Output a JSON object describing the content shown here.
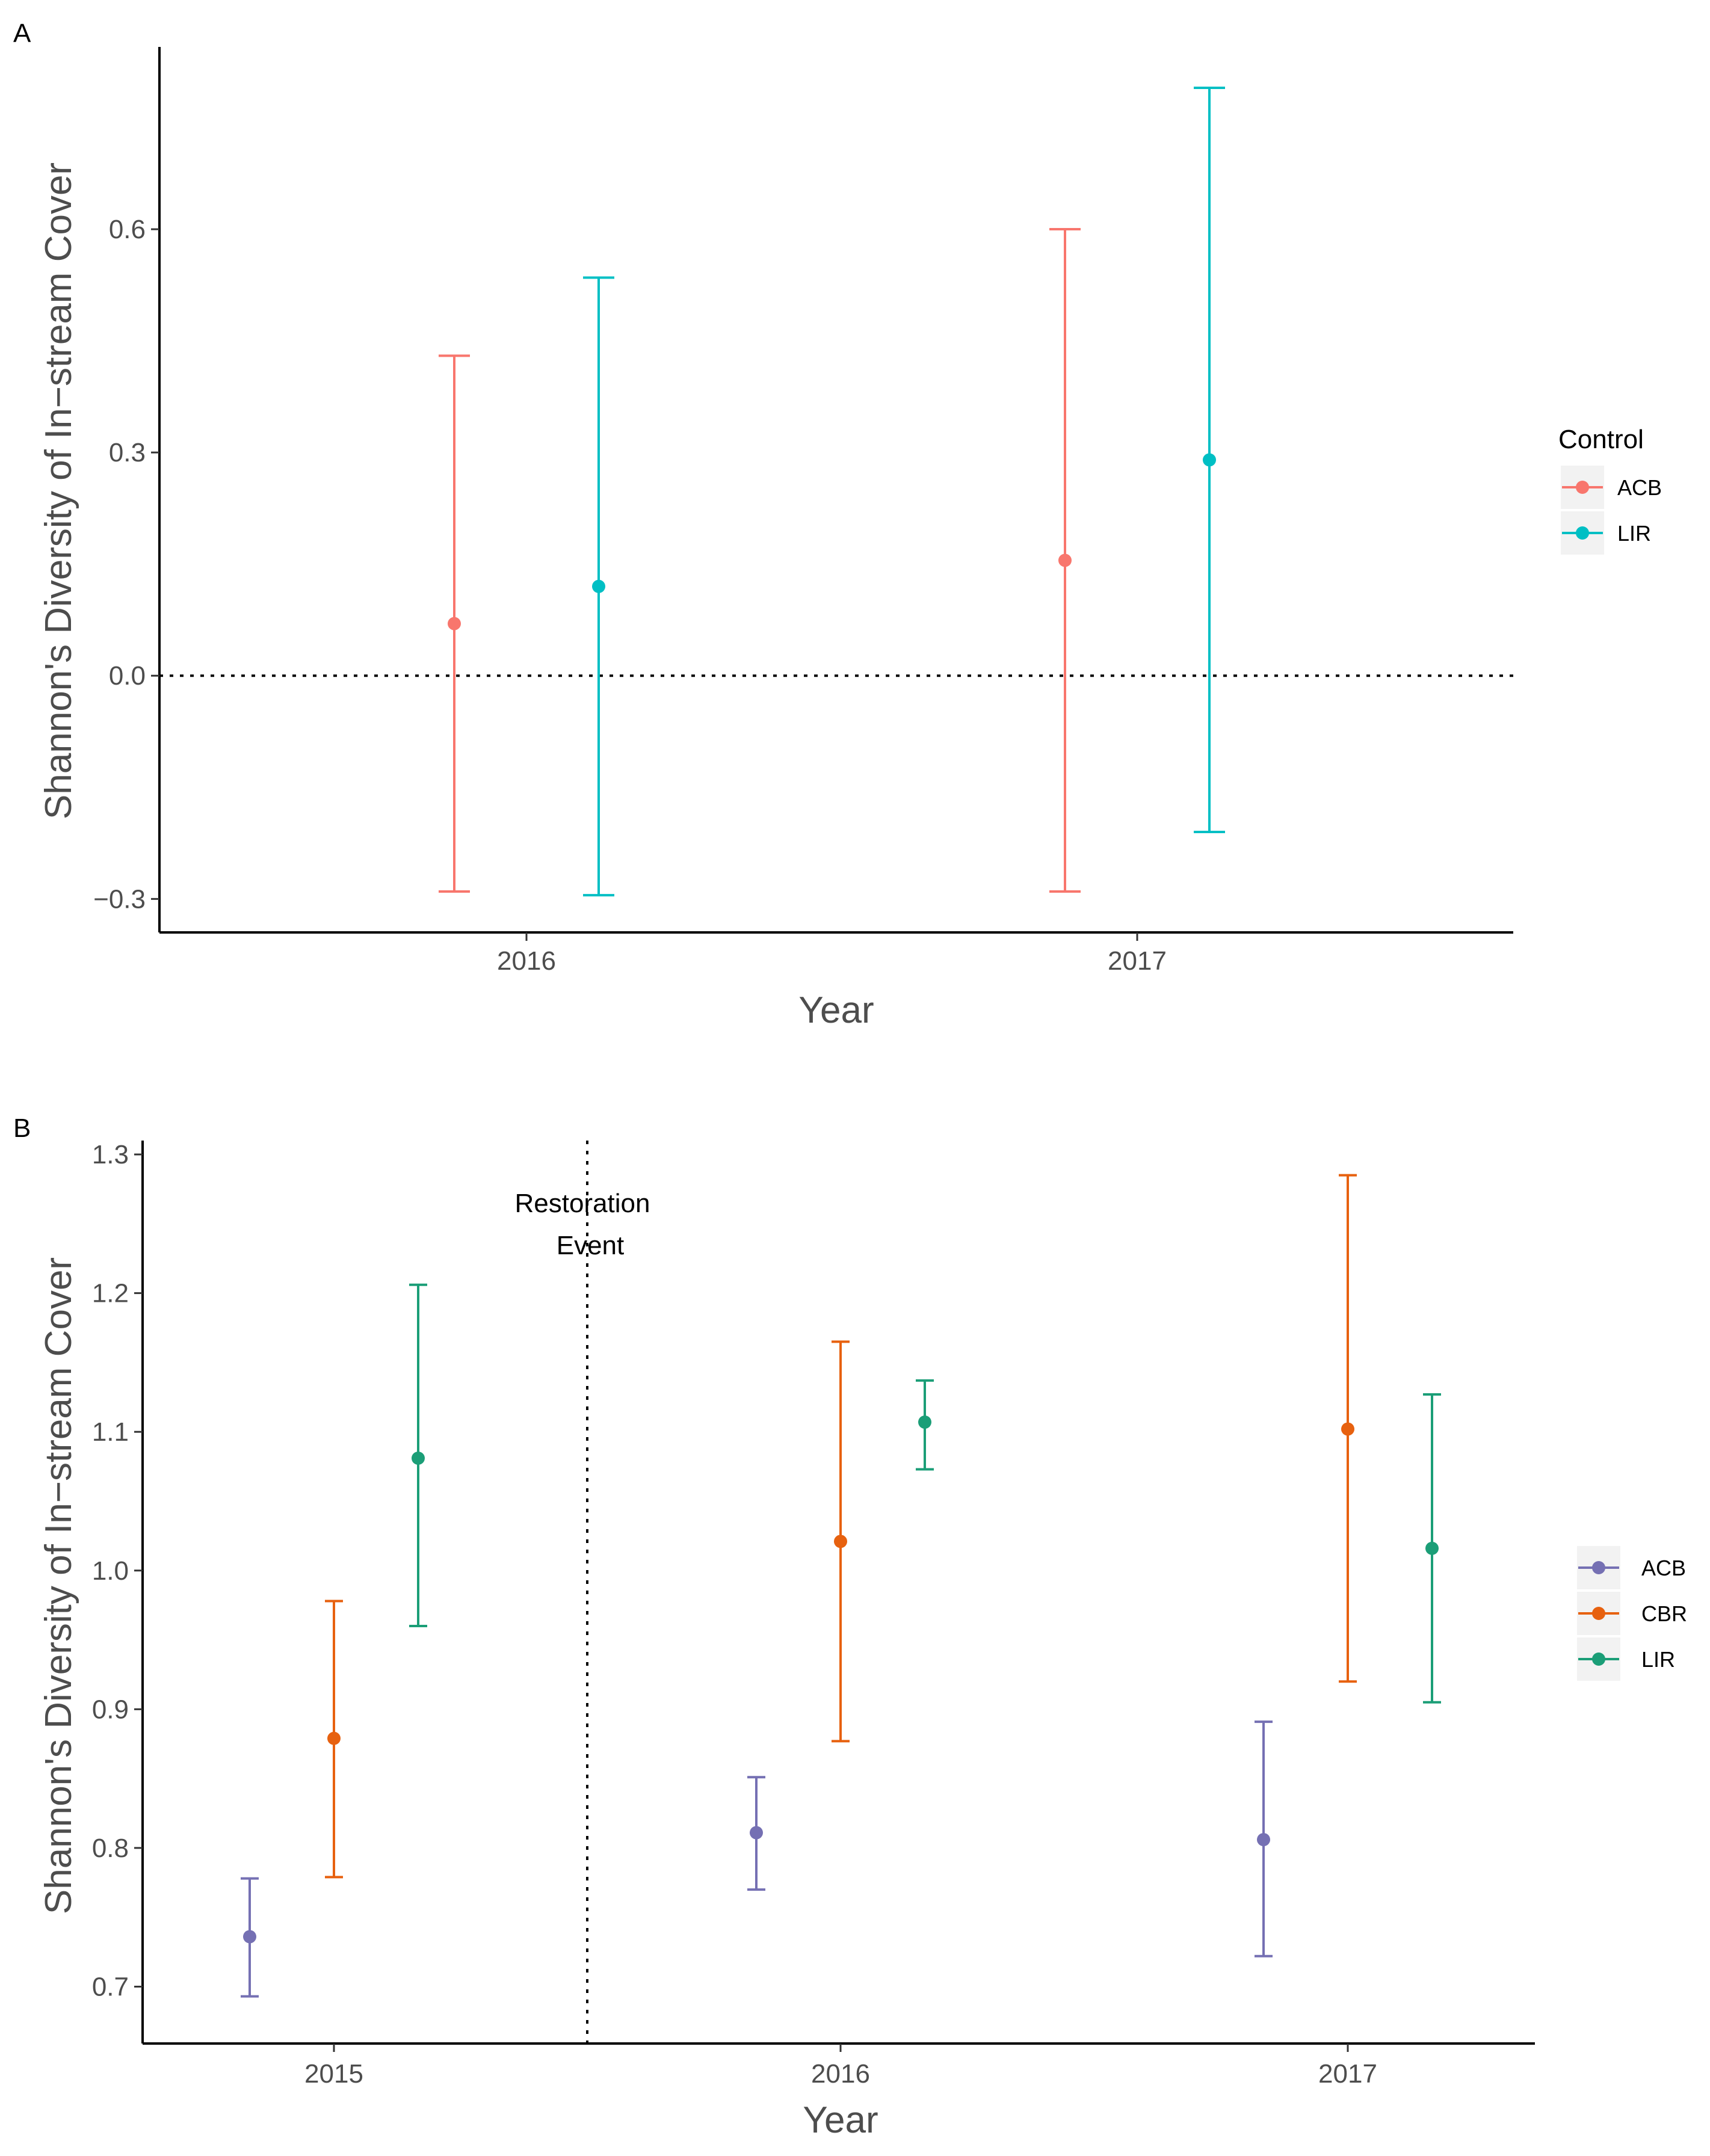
{
  "chart_data": [
    {
      "type": "scatter",
      "panel_label": "A",
      "title": "",
      "xlabel": "Year",
      "ylabel": "Shannon's Diversity of In−stream Cover",
      "categories": [
        "2016",
        "2017"
      ],
      "ylim": [
        -0.345,
        0.845
      ],
      "yticks": [
        -0.3,
        0.0,
        0.3,
        0.6
      ],
      "ytick_labels": [
        "−0.3",
        "0.0",
        "0.3",
        "0.6"
      ],
      "reference_line": {
        "y": 0.0,
        "style": "dotted"
      },
      "legend": {
        "title": "Control",
        "position": "right"
      },
      "series": [
        {
          "name": "ACB",
          "color": "#F8766D",
          "values": [
            0.07,
            0.155
          ],
          "lower": [
            -0.29,
            -0.29
          ],
          "upper": [
            0.43,
            0.6
          ]
        },
        {
          "name": "LIR",
          "color": "#00BFC4",
          "values": [
            0.12,
            0.29
          ],
          "lower": [
            -0.295,
            -0.21
          ],
          "upper": [
            0.535,
            0.79
          ]
        }
      ]
    },
    {
      "type": "scatter",
      "panel_label": "B",
      "title": "",
      "xlabel": "Year",
      "ylabel": "Shannon's Diversity of In−stream Cover",
      "categories": [
        "2015",
        "2016",
        "2017"
      ],
      "ylim": [
        0.659,
        1.31
      ],
      "yticks": [
        0.7,
        0.8,
        0.9,
        1.0,
        1.1,
        1.2,
        1.3
      ],
      "ytick_labels": [
        "0.7",
        "0.8",
        "0.9",
        "1.0",
        "1.1",
        "1.2",
        "1.3"
      ],
      "reference_line": {
        "x_between": [
          0,
          1
        ],
        "style": "dotted"
      },
      "annotation": {
        "lines": [
          "Restoration",
          "Event"
        ]
      },
      "legend": {
        "title": "",
        "position": "right"
      },
      "series": [
        {
          "name": "ACB",
          "color": "#7570B3",
          "values": [
            0.736,
            0.811,
            0.806
          ],
          "lower": [
            0.693,
            0.77,
            0.722
          ],
          "upper": [
            0.778,
            0.851,
            0.891
          ]
        },
        {
          "name": "CBR",
          "color": "#E7610F",
          "values": [
            0.879,
            1.021,
            1.102
          ],
          "lower": [
            0.779,
            0.877,
            0.92
          ],
          "upper": [
            0.978,
            1.165,
            1.285
          ]
        },
        {
          "name": "LIR",
          "color": "#1B9E77",
          "values": [
            1.081,
            1.107,
            1.016
          ],
          "lower": [
            0.96,
            1.073,
            0.905
          ],
          "upper": [
            1.206,
            1.137,
            1.127
          ]
        }
      ]
    }
  ]
}
